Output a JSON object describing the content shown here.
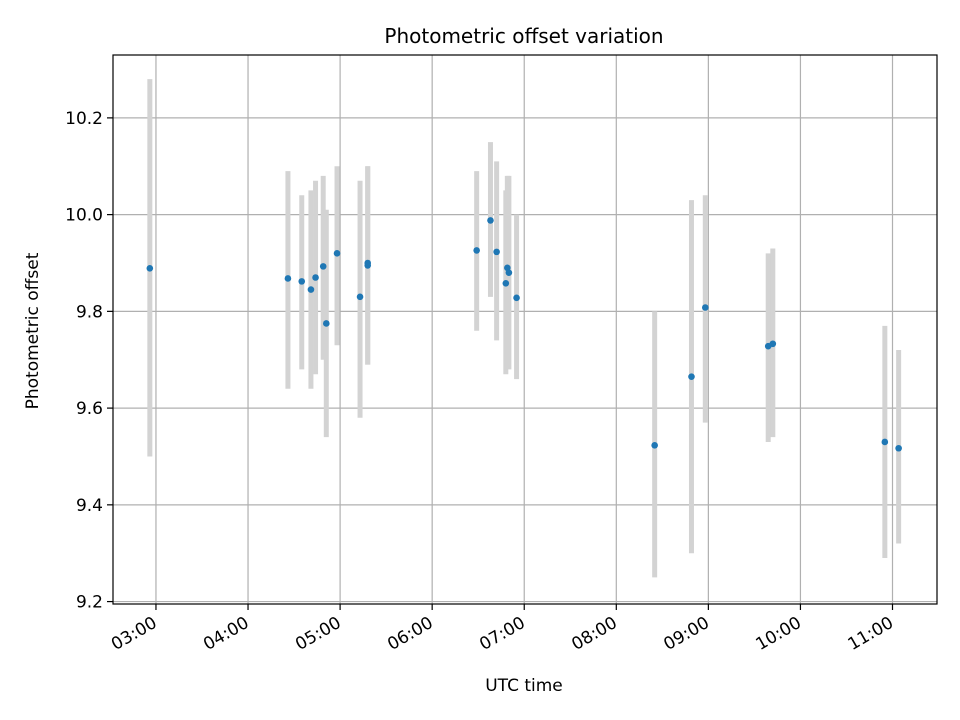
{
  "chart_data": {
    "type": "scatter",
    "title": "Photometric offset variation",
    "xlabel": "UTC time",
    "ylabel": "Photometric offset",
    "x_ticks": [
      "03:00",
      "04:00",
      "05:00",
      "06:00",
      "07:00",
      "08:00",
      "09:00",
      "10:00",
      "11:00"
    ],
    "y_ticks": [
      "9.2",
      "9.4",
      "9.6",
      "9.8",
      "10.0",
      "10.2"
    ],
    "xlim": [
      "02:32",
      "11:29"
    ],
    "ylim": [
      9.195,
      10.33
    ],
    "grid": true,
    "series": [
      {
        "marker_color": "#1f77b4",
        "errorbar_color": "#d3d3d3",
        "points": [
          {
            "x": "02:56",
            "y": 9.889,
            "ylow": 9.5,
            "yhigh": 10.28
          },
          {
            "x": "04:26",
            "y": 9.868,
            "ylow": 9.64,
            "yhigh": 10.09
          },
          {
            "x": "04:35",
            "y": 9.862,
            "ylow": 9.68,
            "yhigh": 10.04
          },
          {
            "x": "04:41",
            "y": 9.845,
            "ylow": 9.64,
            "yhigh": 10.05
          },
          {
            "x": "04:44",
            "y": 9.87,
            "ylow": 9.67,
            "yhigh": 10.07
          },
          {
            "x": "04:49",
            "y": 9.893,
            "ylow": 9.7,
            "yhigh": 10.08
          },
          {
            "x": "04:51",
            "y": 9.775,
            "ylow": 9.54,
            "yhigh": 10.01
          },
          {
            "x": "04:58",
            "y": 9.92,
            "ylow": 9.73,
            "yhigh": 10.1
          },
          {
            "x": "05:13",
            "y": 9.83,
            "ylow": 9.58,
            "yhigh": 10.07
          },
          {
            "x": "05:18",
            "y": 9.895,
            "ylow": 9.69,
            "yhigh": 10.1
          },
          {
            "x": "05:18",
            "y": 9.9,
            "ylow": 9.69,
            "yhigh": 10.1
          },
          {
            "x": "06:29",
            "y": 9.926,
            "ylow": 9.76,
            "yhigh": 10.09
          },
          {
            "x": "06:38",
            "y": 9.988,
            "ylow": 9.83,
            "yhigh": 10.15
          },
          {
            "x": "06:42",
            "y": 9.923,
            "ylow": 9.74,
            "yhigh": 10.11
          },
          {
            "x": "06:48",
            "y": 9.858,
            "ylow": 9.67,
            "yhigh": 10.05
          },
          {
            "x": "06:49",
            "y": 9.89,
            "ylow": 9.69,
            "yhigh": 10.08
          },
          {
            "x": "06:50",
            "y": 9.88,
            "ylow": 9.68,
            "yhigh": 10.08
          },
          {
            "x": "06:55",
            "y": 9.828,
            "ylow": 9.66,
            "yhigh": 10.0
          },
          {
            "x": "08:25",
            "y": 9.523,
            "ylow": 9.25,
            "yhigh": 9.8
          },
          {
            "x": "08:49",
            "y": 9.665,
            "ylow": 9.3,
            "yhigh": 10.03
          },
          {
            "x": "08:58",
            "y": 9.808,
            "ylow": 9.57,
            "yhigh": 10.04
          },
          {
            "x": "09:39",
            "y": 9.728,
            "ylow": 9.53,
            "yhigh": 9.92
          },
          {
            "x": "09:42",
            "y": 9.733,
            "ylow": 9.54,
            "yhigh": 9.93
          },
          {
            "x": "10:55",
            "y": 9.53,
            "ylow": 9.29,
            "yhigh": 9.77
          },
          {
            "x": "11:04",
            "y": 9.517,
            "ylow": 9.32,
            "yhigh": 9.72
          }
        ]
      }
    ]
  }
}
